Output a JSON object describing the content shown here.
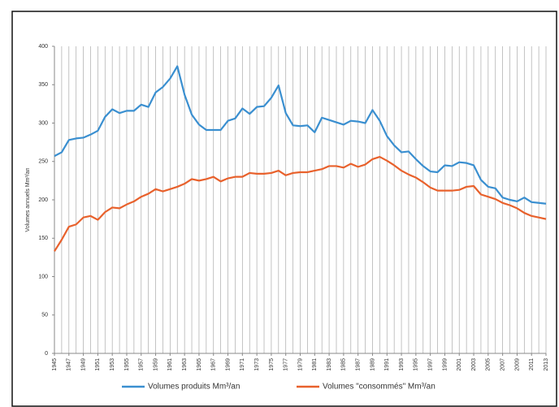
{
  "chart_data": {
    "type": "line",
    "y_label": "Volumes annuels  Mm³/an",
    "x": [
      1945,
      1946,
      1947,
      1948,
      1949,
      1950,
      1951,
      1952,
      1953,
      1954,
      1955,
      1956,
      1957,
      1958,
      1959,
      1960,
      1961,
      1962,
      1963,
      1964,
      1965,
      1966,
      1967,
      1968,
      1969,
      1970,
      1971,
      1972,
      1973,
      1974,
      1975,
      1976,
      1977,
      1978,
      1979,
      1980,
      1981,
      1982,
      1983,
      1984,
      1985,
      1986,
      1987,
      1988,
      1989,
      1990,
      1991,
      1992,
      1993,
      1994,
      1995,
      1996,
      1997,
      1998,
      1999,
      2000,
      2001,
      2002,
      2003,
      2004,
      2005,
      2006,
      2007,
      2008,
      2009,
      2010,
      2011,
      2012,
      2013
    ],
    "series": [
      {
        "name": "Volumes produits Mm³/an",
        "color": "#3a8fd0",
        "values": [
          257,
          262,
          278,
          280,
          281,
          285,
          290,
          308,
          318,
          313,
          316,
          316,
          324,
          321,
          340,
          347,
          358,
          374,
          337,
          311,
          298,
          291,
          291,
          291,
          303,
          306,
          319,
          312,
          321,
          322,
          333,
          349,
          313,
          297,
          296,
          297,
          288,
          307,
          304,
          301,
          298,
          303,
          302,
          300,
          317,
          303,
          283,
          271,
          262,
          263,
          253,
          244,
          237,
          236,
          245,
          244,
          249,
          248,
          245,
          226,
          217,
          215,
          203,
          200,
          198,
          203,
          197,
          196,
          195
        ]
      },
      {
        "name": "Volumes \"consommés\" Mm³/an",
        "color": "#e8612c",
        "values": [
          133,
          148,
          165,
          168,
          177,
          179,
          174,
          184,
          190,
          189,
          194,
          198,
          204,
          208,
          214,
          211,
          214,
          217,
          221,
          227,
          225,
          227,
          230,
          224,
          228,
          230,
          230,
          235,
          234,
          234,
          235,
          238,
          232,
          235,
          236,
          236,
          238,
          240,
          244,
          244,
          242,
          247,
          243,
          246,
          253,
          256,
          251,
          245,
          238,
          233,
          229,
          223,
          216,
          212,
          212,
          212,
          213,
          217,
          218,
          207,
          204,
          201,
          196,
          193,
          189,
          183,
          179,
          177,
          175
        ]
      }
    ],
    "xlim": [
      1945,
      2013
    ],
    "xticks": [
      1945,
      1947,
      1949,
      1951,
      1953,
      1955,
      1957,
      1959,
      1961,
      1963,
      1965,
      1967,
      1969,
      1971,
      1973,
      1975,
      1977,
      1979,
      1981,
      1983,
      1985,
      1987,
      1989,
      1991,
      1993,
      1995,
      1997,
      1999,
      2001,
      2003,
      2005,
      2007,
      2009,
      2011,
      2013
    ],
    "ylim": [
      0,
      400
    ],
    "yticks": [
      0,
      50,
      100,
      150,
      200,
      250,
      300,
      350,
      400
    ],
    "vertical_grid": true,
    "legend": "bottom"
  }
}
